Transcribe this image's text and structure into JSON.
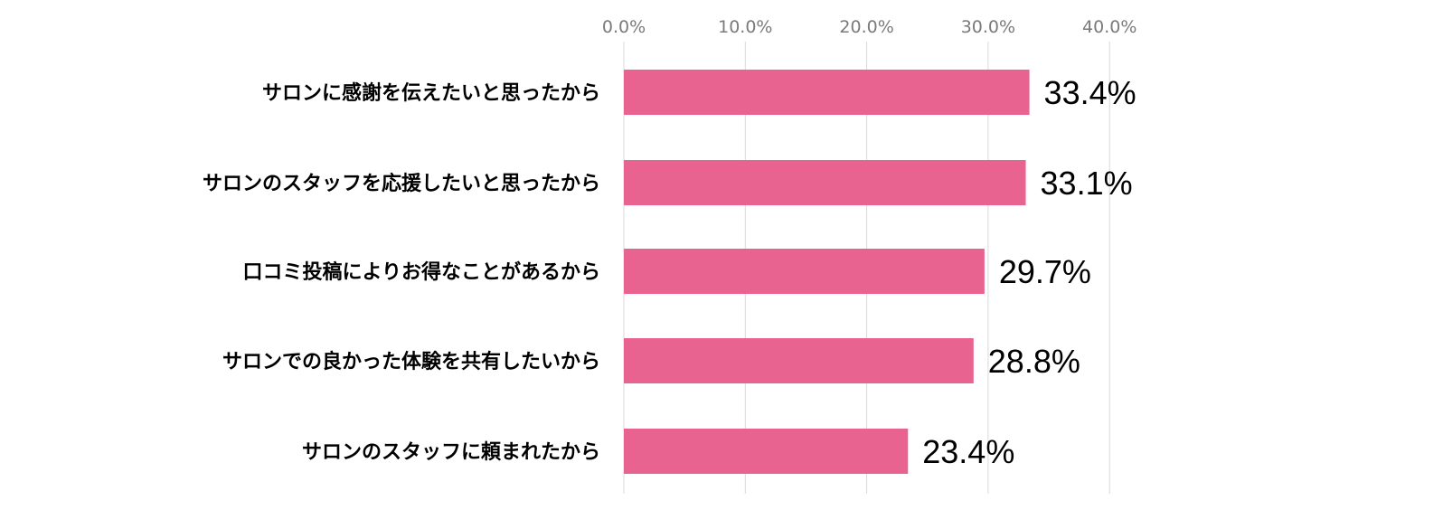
{
  "chart_data": {
    "type": "bar",
    "orientation": "horizontal",
    "categories": [
      "サロンに感謝を伝えたいと思ったから",
      "サロンのスタッフを応援したいと思ったから",
      "口コミ投稿によりお得なことがあるから",
      "サロンでの良かった体験を共有したいから",
      "サロンのスタッフに頼まれたから"
    ],
    "values": [
      33.4,
      33.1,
      29.7,
      28.8,
      23.4
    ],
    "value_labels": [
      "33.4%",
      "33.1%",
      "29.7%",
      "28.8%",
      "23.4%"
    ],
    "xlim": [
      0,
      40
    ],
    "x_ticks": [
      0,
      10,
      20,
      30,
      40
    ],
    "x_tick_labels": [
      "0.0%",
      "10.0%",
      "20.0%",
      "30.0%",
      "40.0%"
    ],
    "x_axis_position": "top",
    "grid": true,
    "legend": "none",
    "bar_color": "#e8638f"
  }
}
